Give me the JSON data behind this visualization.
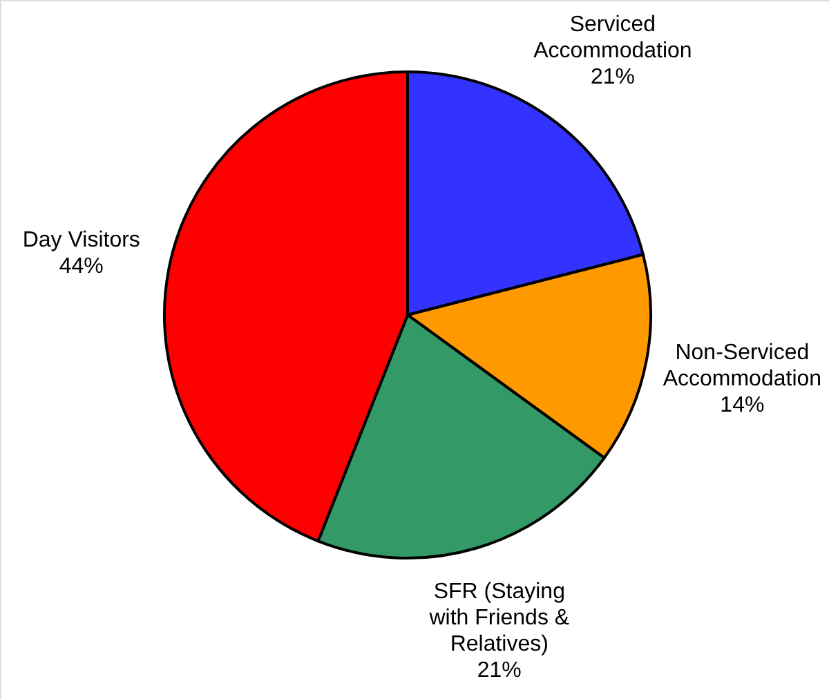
{
  "chart_data": {
    "type": "pie",
    "categories": [
      "Serviced Accommodation",
      "Non-Serviced Accommodation",
      "SFR (Staying with Friends & Relatives)",
      "Day Visitors"
    ],
    "values": [
      21,
      14,
      21,
      44
    ],
    "value_labels": [
      "21%",
      "14%",
      "21%",
      "44%"
    ],
    "colors": [
      "#3333ff",
      "#ff9900",
      "#339966",
      "#ff0000"
    ]
  }
}
